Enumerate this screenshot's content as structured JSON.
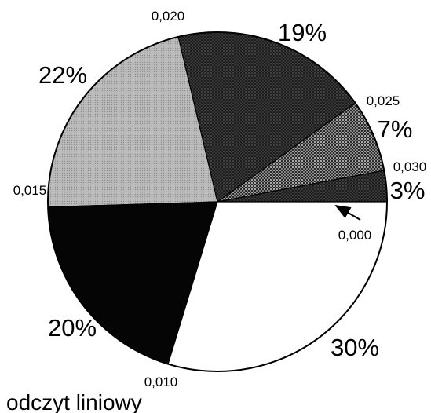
{
  "chart_data": {
    "type": "pie",
    "title": "odczyt liniowy",
    "start_angle_deg": 0,
    "direction": "counterclockwise",
    "slices": [
      {
        "label": "3%",
        "value": 3,
        "color": "#202020",
        "pattern": "dots-dense"
      },
      {
        "label": "7%",
        "value": 7,
        "color": "#4a4a4a",
        "pattern": "dots-light"
      },
      {
        "label": "19%",
        "value": 19,
        "color": "#262626",
        "pattern": "dots-dense"
      },
      {
        "label": "22%",
        "value": 22,
        "color": "#b5b5b5",
        "pattern": "dots-gray"
      },
      {
        "label": "20%",
        "value": 20,
        "color": "#050505",
        "pattern": "solid"
      },
      {
        "label": "30%",
        "value": 30,
        "color": "#ffffff",
        "pattern": "solid"
      }
    ],
    "boundary_labels": [
      "0,000",
      "0,030",
      "0,025",
      "0,020",
      "0,015",
      "0,010"
    ]
  }
}
